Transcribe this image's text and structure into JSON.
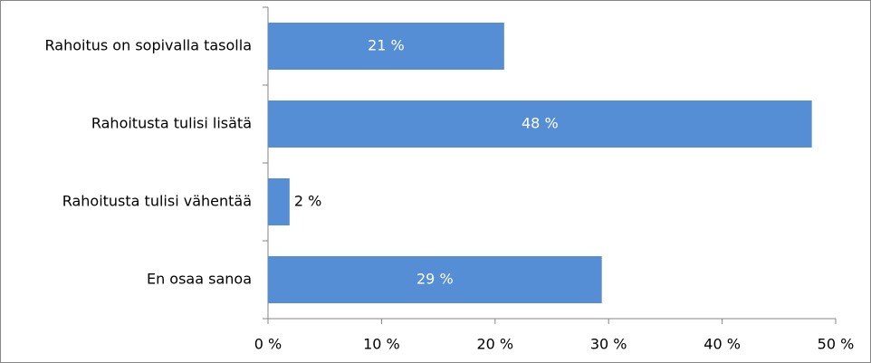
{
  "chart_data": {
    "type": "hbar",
    "categories": [
      "Rahoitus on sopivalla tasolla",
      "Rahoitusta tulisi lisätä",
      "Rahoitusta tulisi vähentää",
      "En osaa sanoa"
    ],
    "values": [
      20.8,
      47.9,
      1.9,
      29.4
    ],
    "value_labels": [
      "21 %",
      "48 %",
      "2 %",
      "29 %"
    ],
    "color": "#558ed5",
    "xlim": [
      0,
      50
    ],
    "xticks": [
      {
        "value": 0,
        "label": "0 %"
      },
      {
        "value": 10,
        "label": "10 %"
      },
      {
        "value": 20,
        "label": "20 %"
      },
      {
        "value": 30,
        "label": "30 %"
      },
      {
        "value": 40,
        "label": "40 %"
      },
      {
        "value": 50,
        "label": "50 %"
      }
    ]
  }
}
